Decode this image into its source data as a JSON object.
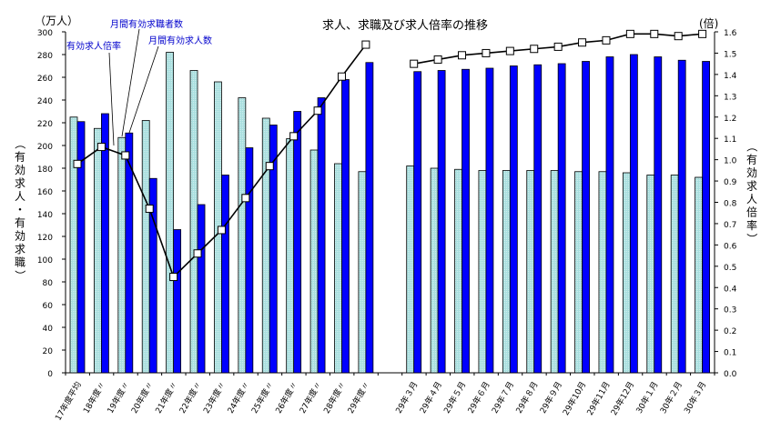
{
  "chart_data": {
    "type": "bar",
    "title": "求人、求職及び求人倍率の推移",
    "left_unit": "（万人）",
    "right_unit": "(倍)",
    "ylabel": "（有効求人・有効求職）",
    "y2label": "（有効求人倍率）",
    "ylim": [
      0,
      300
    ],
    "y2lim": [
      0,
      1.6
    ],
    "yticks": [
      0,
      20,
      40,
      60,
      80,
      100,
      120,
      140,
      160,
      180,
      200,
      220,
      240,
      260,
      280,
      300
    ],
    "y2ticks": [
      "0.0",
      "0.1",
      "0.2",
      "0.3",
      "0.4",
      "0.5",
      "0.6",
      "0.7",
      "0.8",
      "0.9",
      "1.0",
      "1.1",
      "1.2",
      "1.3",
      "1.4",
      "1.5",
      "1.6"
    ],
    "categories": [
      "17年度平均",
      "18年度〃",
      "19年度〃",
      "20年度〃",
      "21年度〃",
      "22年度〃",
      "23年度〃",
      "24年度〃",
      "25年度〃",
      "26年度〃",
      "27年度〃",
      "28年度〃",
      "29年度〃",
      "",
      "29年３月",
      "29年４月",
      "29年５月",
      "29年６月",
      "29年７月",
      "29年８月",
      "29年９月",
      "29年10月",
      "29年11月",
      "29年12月",
      "30年１月",
      "30年２月",
      "30年３月"
    ],
    "series": [
      {
        "name": "月間有効求職者数",
        "kind": "bar",
        "color": "#a8dede",
        "values": [
          225,
          215,
          207,
          222,
          282,
          266,
          256,
          242,
          224,
          206,
          196,
          184,
          177,
          null,
          182,
          180,
          179,
          178,
          178,
          178,
          178,
          177,
          177,
          176,
          174,
          174,
          172
        ]
      },
      {
        "name": "月間有効求人数",
        "kind": "bar",
        "color": "#0000ff",
        "values": [
          221,
          228,
          211,
          171,
          126,
          148,
          174,
          198,
          218,
          230,
          242,
          258,
          273,
          null,
          265,
          266,
          267,
          268,
          270,
          271,
          272,
          274,
          278,
          280,
          278,
          275,
          274
        ]
      },
      {
        "name": "有効求人倍率",
        "kind": "line",
        "axis": "right",
        "color": "#000000",
        "values": [
          0.98,
          1.06,
          1.02,
          0.77,
          0.45,
          0.56,
          0.67,
          0.82,
          0.97,
          1.11,
          1.23,
          1.39,
          1.54,
          null,
          1.45,
          1.47,
          1.49,
          1.5,
          1.51,
          1.52,
          1.53,
          1.55,
          1.56,
          1.59,
          1.59,
          1.58,
          1.59
        ]
      }
    ],
    "annotations": [
      "有効求人倍率",
      "月間有効求職者数",
      "月間有効求人数"
    ],
    "grid": false
  }
}
